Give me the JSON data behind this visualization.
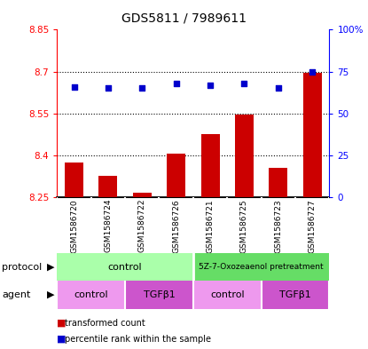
{
  "title": "GDS5811 / 7989611",
  "samples": [
    "GSM1586720",
    "GSM1586724",
    "GSM1586722",
    "GSM1586726",
    "GSM1586721",
    "GSM1586725",
    "GSM1586723",
    "GSM1586727"
  ],
  "bar_values": [
    8.375,
    8.325,
    8.265,
    8.405,
    8.475,
    8.545,
    8.355,
    8.695
  ],
  "dot_values": [
    66,
    65,
    65,
    68,
    67,
    68,
    65,
    75
  ],
  "bar_bottom": 8.25,
  "bar_color": "#cc0000",
  "dot_color": "#0000cc",
  "ylim_left": [
    8.25,
    8.85
  ],
  "ylim_right": [
    0,
    100
  ],
  "yticks_left": [
    8.25,
    8.4,
    8.55,
    8.7,
    8.85
  ],
  "ytick_labels_left": [
    "8.25",
    "8.4",
    "8.55",
    "8.7",
    "8.85"
  ],
  "yticks_right": [
    0,
    25,
    50,
    75,
    100
  ],
  "ytick_labels_right": [
    "0",
    "25",
    "50",
    "75",
    "100%"
  ],
  "hlines": [
    8.4,
    8.55,
    8.7
  ],
  "protocol_labels": [
    "control",
    "5Z-7-Oxozeaenol pretreatment"
  ],
  "protocol_light_green": "#aaffaa",
  "protocol_dark_green": "#66dd66",
  "agent_light_purple": "#ee99ee",
  "agent_dark_purple": "#cc55cc",
  "legend_bar_label": "transformed count",
  "legend_dot_label": "percentile rank within the sample",
  "bg_color": "#d8d8d8",
  "agent_labels": [
    "control",
    "TGFβ1",
    "control",
    "TGFβ1"
  ]
}
